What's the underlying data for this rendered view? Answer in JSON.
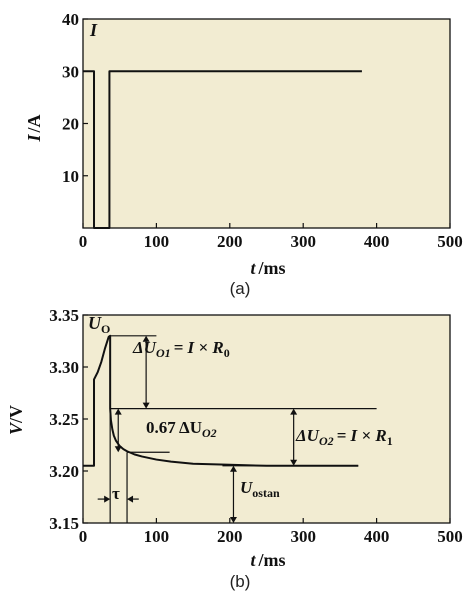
{
  "colors": {
    "plot_bg": "#f2ecd2",
    "line": "#111111"
  },
  "chart_data": [
    {
      "type": "line",
      "caption": "(a)",
      "corner_label": "I",
      "ylabel_var": "I",
      "ylabel_unit": "/A",
      "xlabel_var": "t",
      "xlabel_unit": "/ms",
      "xlim": [
        0,
        500
      ],
      "ylim": [
        0,
        40
      ],
      "xticks": [
        0,
        100,
        200,
        300,
        400,
        500
      ],
      "yticks": [
        10,
        20,
        30,
        40
      ],
      "grid": false,
      "series": [
        {
          "x": [
            0,
            0,
            15,
            15,
            36,
            36,
            380
          ],
          "y": [
            30,
            30,
            30,
            0,
            0,
            30,
            30
          ]
        }
      ]
    },
    {
      "type": "line",
      "caption": "(b)",
      "corner_label": "U",
      "corner_sub": "O",
      "ylabel_var": "V",
      "ylabel_unit": "/V",
      "xlabel_var": "t",
      "xlabel_unit": "/ms",
      "xlim": [
        0,
        500
      ],
      "ylim": [
        3.15,
        3.35
      ],
      "xticks": [
        0,
        100,
        200,
        300,
        400,
        500
      ],
      "yticks": [
        3.15,
        3.2,
        3.25,
        3.3,
        3.35
      ],
      "grid": false,
      "series": [
        {
          "x": [
            0,
            15,
            15,
            20,
            25,
            30,
            35,
            37,
            37,
            38,
            40,
            42,
            45,
            50,
            55,
            60,
            70,
            80,
            100,
            120,
            150,
            200,
            250,
            300,
            375
          ],
          "y": [
            3.205,
            3.205,
            3.288,
            3.295,
            3.305,
            3.318,
            3.329,
            3.33,
            3.26,
            3.249,
            3.24,
            3.234,
            3.229,
            3.224,
            3.221,
            3.219,
            3.216,
            3.214,
            3.211,
            3.209,
            3.207,
            3.206,
            3.205,
            3.205,
            3.205
          ]
        }
      ],
      "annotations": {
        "delta_uo1": {
          "lhs": "ΔU",
          "lhs_sub": "O1",
          "rhs": "= I × R",
          "rhs_sub": "0"
        },
        "frac_uo2": {
          "text": "0.67 ΔU",
          "sub": "O2"
        },
        "delta_uo2": {
          "lhs": "ΔU",
          "lhs_sub": "O2",
          "rhs": "= I × R",
          "rhs_sub": "1"
        },
        "tau": "τ",
        "u_ostan": {
          "main": "U",
          "sub": "ostan"
        }
      }
    }
  ]
}
